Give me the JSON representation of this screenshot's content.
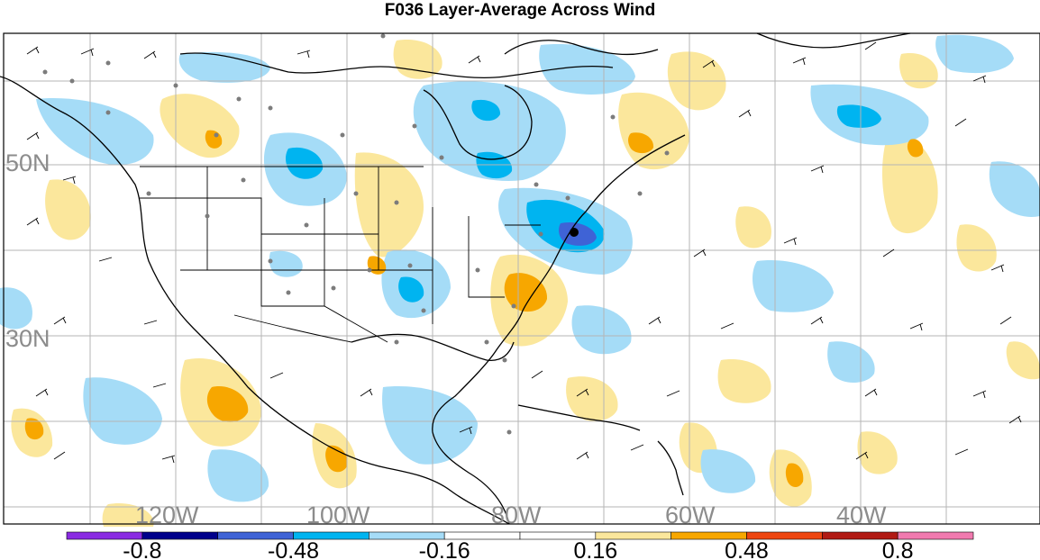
{
  "title": "F036 Layer-Average Across Wind",
  "grid_labels": {
    "latitude": [
      "50N",
      "30N"
    ],
    "longitude": [
      "120W",
      "100W",
      "80W",
      "60W",
      "40W"
    ]
  },
  "colorbar": {
    "colors": [
      "#8a2be2",
      "#00008b",
      "#3f63d6",
      "#00b4f0",
      "#a5dcf7",
      "#ffffff",
      "#ffffff",
      "#fbe79c",
      "#f7a700",
      "#ee4610",
      "#b11a14",
      "#f17aaf"
    ],
    "labels": [
      "-0.8",
      "-0.48",
      "-0.16",
      "0.16",
      "0.48",
      "0.8"
    ]
  },
  "colors": {
    "light_blue": "#a5dcf7",
    "medium_blue": "#00b4f0",
    "dark_blue": "#3f63d6",
    "light_yellow": "#fbe79c",
    "orange": "#f7a700",
    "grid": "#b5b5b5",
    "coastline": "#000000"
  }
}
